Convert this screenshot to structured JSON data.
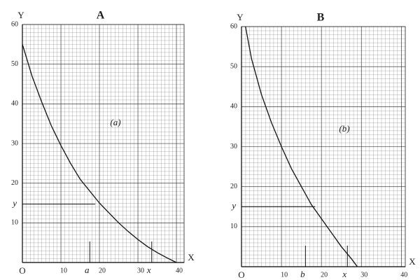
{
  "chart_data": [
    {
      "type": "line",
      "title": "A",
      "annotation": "(a)",
      "x_label": "X",
      "y_label": "Y",
      "origin_label": "O",
      "x": [
        0,
        2.5,
        5,
        7.5,
        10,
        12.5,
        15,
        17.5,
        20,
        22.5,
        25,
        27.5,
        30,
        32.5,
        35,
        37.5,
        40
      ],
      "values": [
        55,
        47,
        40.5,
        34.5,
        29.5,
        25,
        21,
        18,
        15,
        12.5,
        10,
        7.8,
        5.8,
        4,
        2.5,
        1.2,
        0
      ],
      "color": "#111111",
      "xlim": [
        0,
        42
      ],
      "ylim": [
        0,
        60
      ],
      "xticks": [
        10,
        20,
        30,
        40
      ],
      "yticks": [
        10,
        20,
        30,
        40,
        50,
        60
      ],
      "x_markers": [
        {
          "value": 17.5,
          "label": "a"
        },
        {
          "value": 33.6,
          "label": "x"
        }
      ],
      "y_markers": [
        {
          "value": 14.7,
          "label": "y"
        }
      ],
      "grid": true
    },
    {
      "type": "line",
      "title": "B",
      "annotation": "(b)",
      "x_label": "X",
      "y_label": "Y",
      "origin_label": "O",
      "x": [
        1,
        2.5,
        5,
        7.5,
        10,
        12.5,
        15,
        17.5,
        20,
        22.5,
        25,
        27.5,
        29
      ],
      "values": [
        60,
        52,
        43,
        36,
        30,
        24.5,
        20,
        15.5,
        12,
        8.5,
        5,
        2,
        0
      ],
      "color": "#111111",
      "xlim": [
        0,
        41
      ],
      "ylim": [
        0,
        60
      ],
      "xticks": [
        10,
        20,
        30,
        40
      ],
      "yticks": [
        10,
        20,
        30,
        40,
        50,
        60
      ],
      "x_markers": [
        {
          "value": 16,
          "label": "b"
        },
        {
          "value": 26.5,
          "label": "x"
        }
      ],
      "y_markers": [
        {
          "value": 15,
          "label": "y"
        }
      ],
      "grid": true
    }
  ]
}
